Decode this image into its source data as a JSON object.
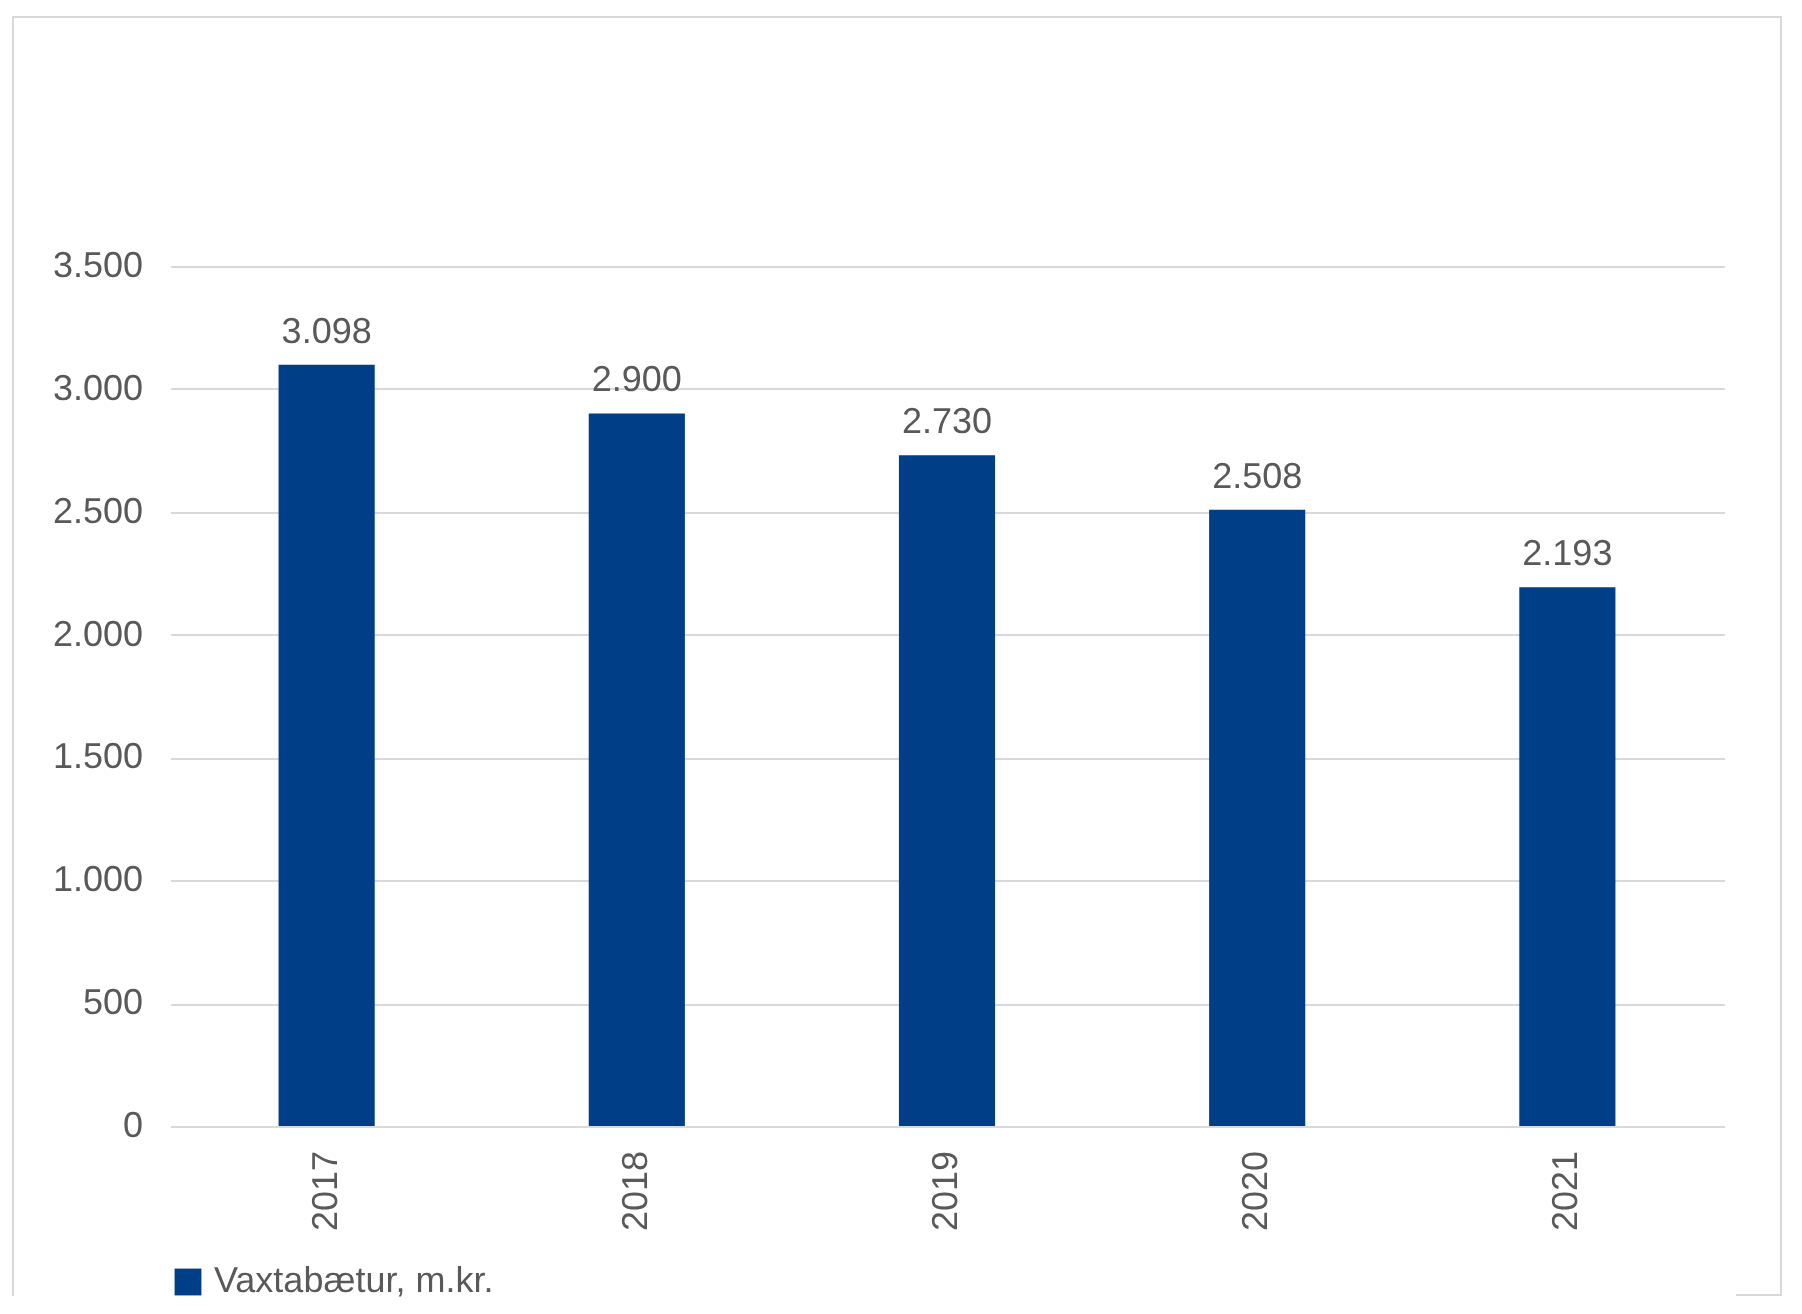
{
  "chart_data": {
    "type": "bar",
    "categories": [
      "2017",
      "2018",
      "2019",
      "2020",
      "2021"
    ],
    "series": [
      {
        "name": "Vaxtabætur, m.kr.",
        "color": "#003f87",
        "values": [
          3098,
          2900,
          2730,
          2508,
          2193
        ],
        "value_labels": [
          "3.098",
          "2.900",
          "2.730",
          "2.508",
          "2.193"
        ]
      }
    ],
    "ylim": [
      0,
      3500
    ],
    "yticks": [
      {
        "value": 0,
        "label": "0"
      },
      {
        "value": 500,
        "label": "500"
      },
      {
        "value": 1000,
        "label": "1.000"
      },
      {
        "value": 1500,
        "label": "1.500"
      },
      {
        "value": 2000,
        "label": "2.000"
      },
      {
        "value": 2500,
        "label": "2.500"
      },
      {
        "value": 3000,
        "label": "3.000"
      },
      {
        "value": 3500,
        "label": "3.500"
      }
    ],
    "grid": "y",
    "legend": "bottom"
  }
}
